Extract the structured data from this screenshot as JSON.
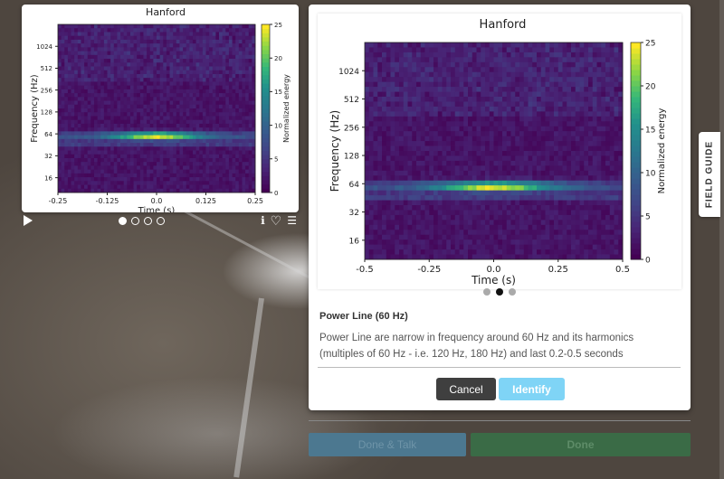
{
  "subject_viewer": {
    "chart_title": "Hanford",
    "frame_count": 4,
    "active_frame": 0,
    "icons": [
      "play-icon",
      "info-icon",
      "heart-icon",
      "list-icon"
    ],
    "info_glyph": "ℹ",
    "heart_glyph": "♡",
    "list_glyph": "☰"
  },
  "field_guide_modal": {
    "carousel_count": 3,
    "active_index": 1,
    "title": "Power Line (60 Hz)",
    "description": "Power Line are narrow in frequency around 60 Hz and its harmonics (multiples of 60 Hz - i.e. 120 Hz, 180 Hz) and last 0.2-0.5 seconds",
    "cancel_label": "Cancel",
    "identify_label": "Identify",
    "accent_color": "#7fd4f6"
  },
  "task": {
    "done_talk_label": "Done & Talk",
    "done_label": "Done"
  },
  "field_guide_tab": {
    "label": "FIELD GUIDE"
  },
  "chart_data": [
    {
      "type": "heatmap",
      "title": "Hanford",
      "xlabel": "Time (s)",
      "ylabel": "Frequency (Hz)",
      "xlim": [
        -0.25,
        0.25
      ],
      "xticks": [
        "-0.25",
        "-0.125",
        "0.0",
        "0.125",
        "0.25"
      ],
      "yscale": "log2",
      "yticks": [
        "16",
        "32",
        "64",
        "128",
        "256",
        "512",
        "1024"
      ],
      "colorbar_label": "Normalized energy",
      "colorbar_ticks": [
        "0",
        "5",
        "10",
        "15",
        "20",
        "25"
      ],
      "colorbar_range": [
        0,
        25
      ],
      "feature": {
        "frequency_hz": 60,
        "peak_time_s": 0.0,
        "peak_energy": 25
      }
    },
    {
      "type": "heatmap",
      "title": "Hanford",
      "xlabel": "Time (s)",
      "ylabel": "Frequency (Hz)",
      "xlim": [
        -0.5,
        0.5
      ],
      "xticks": [
        "-0.5",
        "-0.25",
        "0.0",
        "0.25",
        "0.5"
      ],
      "yscale": "log2",
      "yticks": [
        "16",
        "32",
        "64",
        "128",
        "256",
        "512",
        "1024"
      ],
      "colorbar_label": "Normalized energy",
      "colorbar_ticks": [
        "0",
        "5",
        "10",
        "15",
        "20",
        "25"
      ],
      "colorbar_range": [
        0,
        25
      ],
      "feature": {
        "frequency_hz": 60,
        "peak_time_s": 0.0,
        "peak_energy": 25
      }
    }
  ]
}
